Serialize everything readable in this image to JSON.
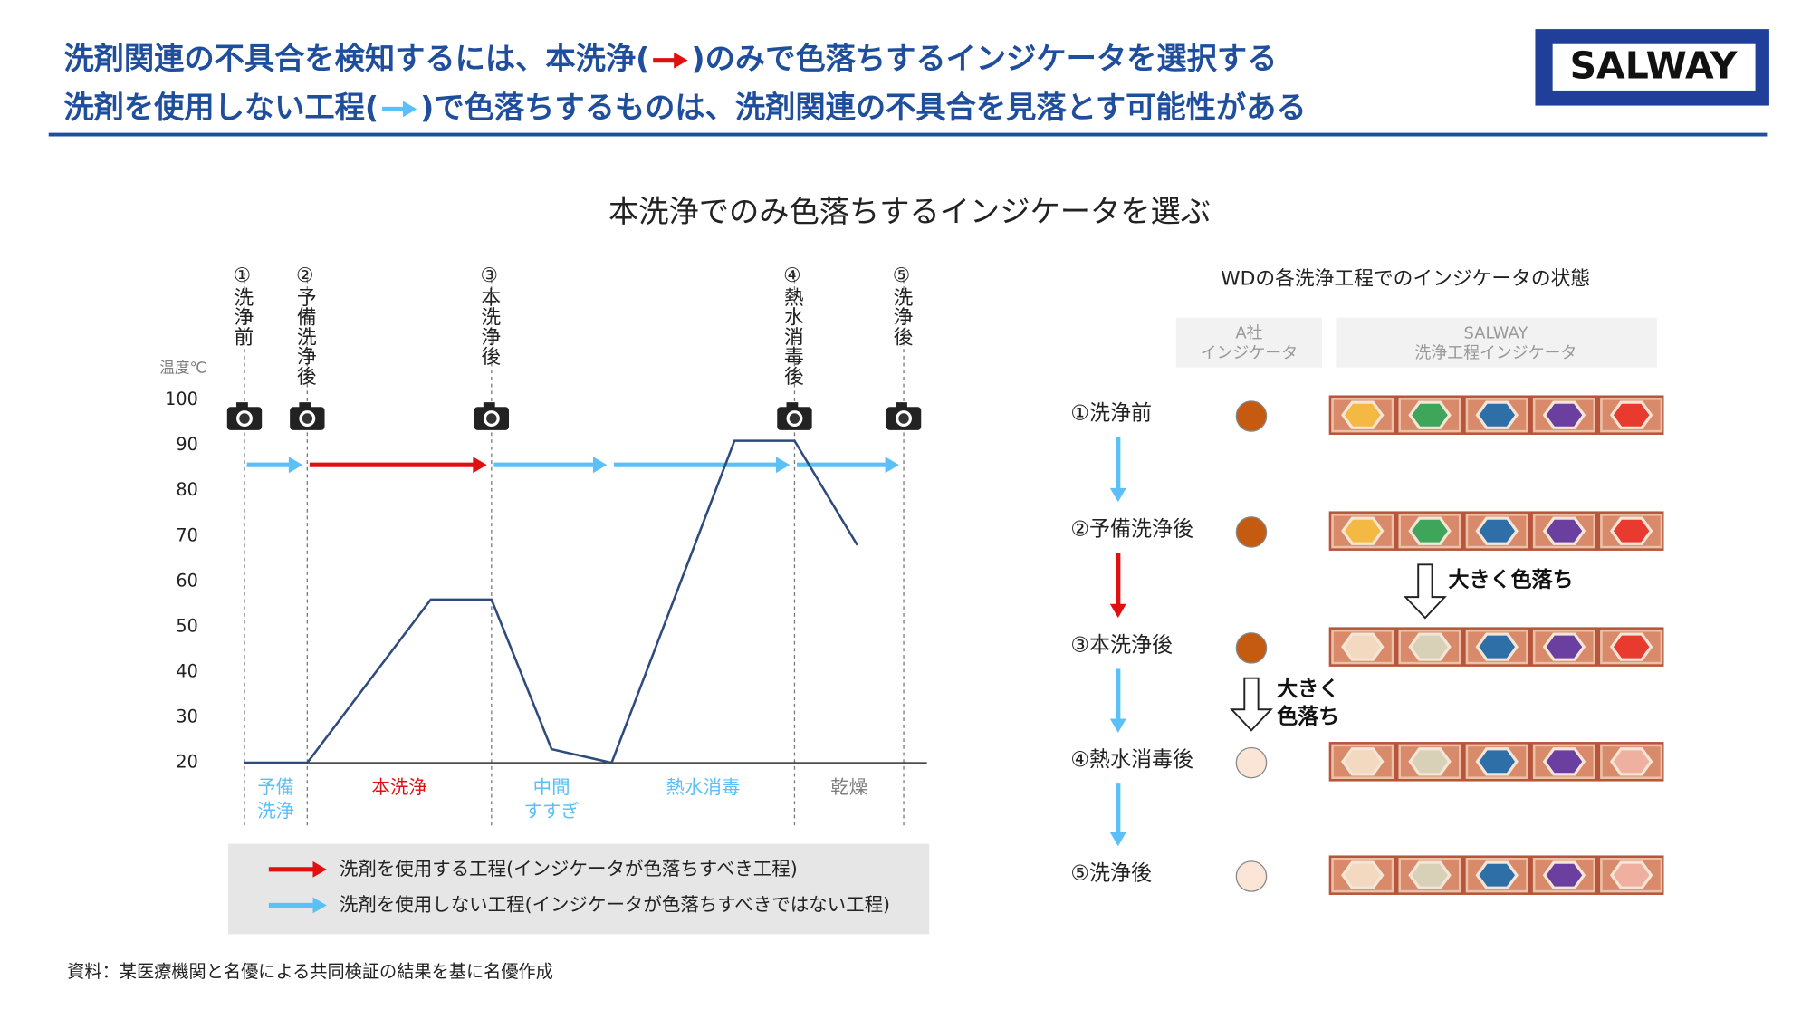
{
  "header": {
    "line1": [
      "洗剤関連の不具合を検知するには、本洗浄(",
      ")のみで色落ちするインジケータを選択する"
    ],
    "line1_arrow_color": "#e01010",
    "line2": [
      "洗剤を使用しない工程(",
      ")で色落ちするものは、洗剤関連の不具合を見落とす可能性がある"
    ],
    "line2_arrow_color": "#5bc0f8",
    "logo": "SALWAY"
  },
  "chart_data": {
    "type": "line",
    "title": "本洗浄でのみ色落ちするインジケータを選ぶ",
    "ylabel": "温度℃",
    "xlim": [
      0,
      100
    ],
    "ylim": [
      20,
      100
    ],
    "yticks": [
      20,
      30,
      40,
      50,
      60,
      70,
      80,
      90,
      100
    ],
    "x": [
      0,
      9.2,
      27.3,
      36.2,
      45,
      53.8,
      71.8,
      80.6,
      89.8
    ],
    "values": [
      20,
      20,
      56,
      56,
      23,
      20,
      91,
      91,
      68
    ],
    "color": "#2f4b7c",
    "checkpoints": [
      {
        "label": "①洗浄前",
        "x": 0
      },
      {
        "label": "②予備洗浄後",
        "x": 9.2
      },
      {
        "label": "③本洗浄後",
        "x": 36.2
      },
      {
        "label": "④熱水消毒後",
        "x": 80.6
      },
      {
        "label": "⑤洗浄後",
        "x": 96.6
      }
    ],
    "phases": [
      {
        "label": [
          "予備",
          "洗浄"
        ],
        "from": 0,
        "to": 9.2,
        "color": "#5bc0f8",
        "label_color": "#5bc0f8"
      },
      {
        "label": [
          "本洗浄"
        ],
        "from": 9.2,
        "to": 36.2,
        "color": "#e01010",
        "label_color": "#e01010"
      },
      {
        "label": [
          "中間",
          "すすぎ"
        ],
        "from": 36.2,
        "to": 53.8,
        "color": "#5bc0f8",
        "label_color": "#5bc0f8"
      },
      {
        "label": [
          "熱水消毒"
        ],
        "from": 53.8,
        "to": 80.6,
        "color": "#5bc0f8",
        "label_color": "#5bc0f8"
      },
      {
        "label": [
          "乾燥"
        ],
        "from": 80.6,
        "to": 96.6,
        "color": "#5bc0f8",
        "label_color": "#7f7f7f"
      }
    ],
    "legend": [
      {
        "label": "洗剤を使用する工程(インジケータが色落ちすべき工程)",
        "color": "#e01010"
      },
      {
        "label": "洗剤を使用しない工程(インジケータが色落ちすべきではない工程)",
        "color": "#5bc0f8"
      }
    ]
  },
  "panel": {
    "title": "WDの各洗浄工程でのインジケータの状態",
    "col_a": [
      "A社",
      "インジケータ"
    ],
    "col_b": [
      "SALWAY",
      "洗浄工程インジケータ"
    ],
    "rows": [
      {
        "label": "①洗浄前",
        "a_color": "#c55a11",
        "hex": [
          "#f4b942",
          "#3ea55b",
          "#2e6fa8",
          "#6b3fa0",
          "#e83a2e"
        ]
      },
      {
        "label": "②予備洗浄後",
        "a_color": "#c55a11",
        "hex": [
          "#f4b942",
          "#3ea55b",
          "#2e6fa8",
          "#6b3fa0",
          "#e83a2e"
        ]
      },
      {
        "label": "③本洗浄後",
        "a_color": "#c55a11",
        "hex": [
          "#f2d9c0",
          "#d9d0b8",
          "#2e6fa8",
          "#6b3fa0",
          "#e83a2e"
        ]
      },
      {
        "label": "④熱水消毒後",
        "a_color": "#fbe5d6",
        "hex": [
          "#f2d9c0",
          "#d9d0b8",
          "#2e6fa8",
          "#6b3fa0",
          "#f0b0a0"
        ]
      },
      {
        "label": "⑤洗浄後",
        "a_color": "#fbe5d6",
        "hex": [
          "#f2d9c0",
          "#d9d0b8",
          "#2e6fa8",
          "#6b3fa0",
          "#f0b0a0"
        ]
      }
    ],
    "arrows": [
      "#5bc0f8",
      "#e01010",
      "#5bc0f8",
      "#5bc0f8"
    ],
    "note1": "大きく色落ち",
    "note2": [
      "大きく",
      "色落ち"
    ]
  },
  "source": "資料：某医療機関と名優による共同検証の結果を基に名優作成"
}
